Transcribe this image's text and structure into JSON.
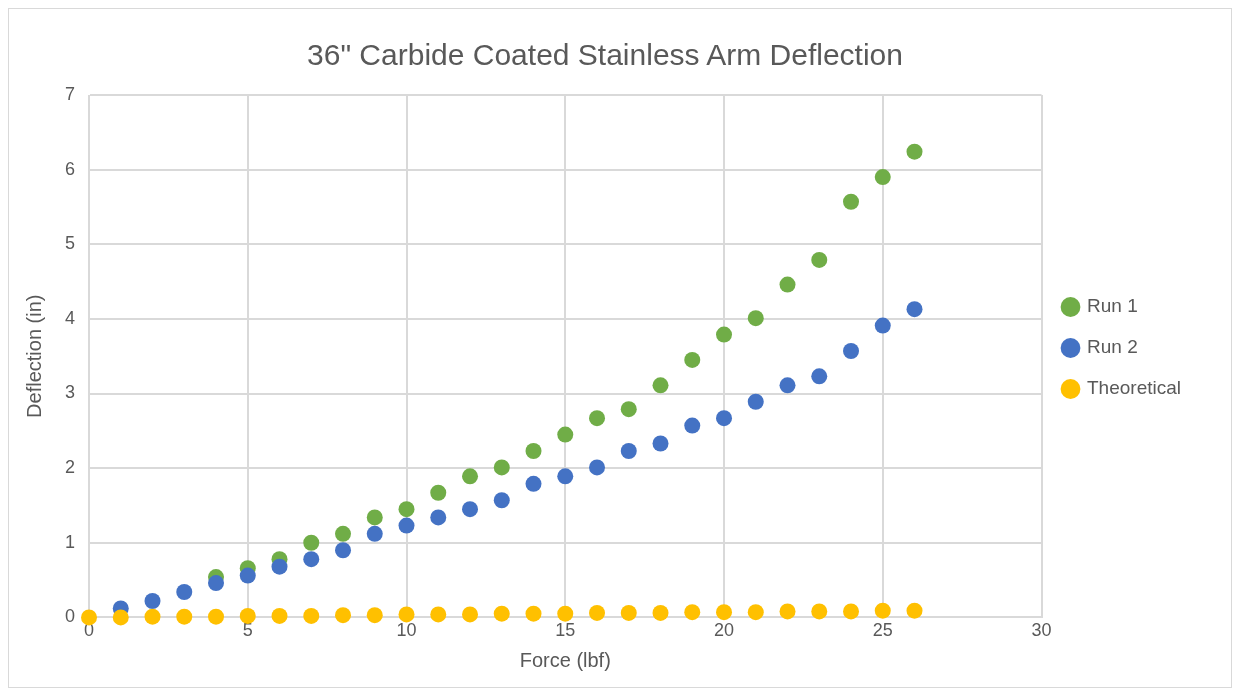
{
  "chart_data": {
    "type": "scatter",
    "title": "36\" Carbide Coated Stainless Arm Deflection",
    "xlabel": "Force (lbf)",
    "ylabel": "Deflection (in)",
    "x": [
      0,
      1,
      2,
      3,
      4,
      5,
      6,
      7,
      8,
      9,
      10,
      11,
      12,
      13,
      14,
      15,
      16,
      17,
      18,
      19,
      20,
      21,
      22,
      23,
      24,
      25,
      26
    ],
    "series": [
      {
        "name": "Run 1",
        "color": "#70ad47",
        "values": [
          null,
          null,
          null,
          null,
          0.54,
          0.66,
          0.78,
          1.0,
          1.12,
          1.34,
          1.45,
          1.67,
          1.89,
          2.01,
          2.23,
          2.45,
          2.67,
          2.79,
          3.11,
          3.45,
          3.79,
          4.01,
          4.46,
          4.79,
          5.57,
          5.9,
          6.24
        ]
      },
      {
        "name": "Run 2",
        "color": "#4472c4",
        "values": [
          null,
          0.12,
          0.22,
          0.34,
          0.46,
          0.56,
          0.68,
          0.78,
          0.9,
          1.12,
          1.23,
          1.34,
          1.45,
          1.57,
          1.79,
          1.89,
          2.01,
          2.23,
          2.33,
          2.57,
          2.67,
          2.89,
          3.11,
          3.23,
          3.57,
          3.91,
          4.13
        ]
      },
      {
        "name": "Theoretical",
        "color": "#ffc000",
        "values": [
          0,
          0,
          0.01,
          0.01,
          0.01,
          0.02,
          0.02,
          0.02,
          0.03,
          0.03,
          0.04,
          0.04,
          0.04,
          0.05,
          0.05,
          0.05,
          0.06,
          0.06,
          0.06,
          0.07,
          0.07,
          0.07,
          0.08,
          0.08,
          0.08,
          0.09,
          0.09
        ]
      }
    ],
    "xlim": [
      0,
      30
    ],
    "xticks": [
      0,
      5,
      10,
      15,
      20,
      25,
      30
    ],
    "ylim": [
      0,
      7
    ],
    "yticks": [
      0,
      1,
      2,
      3,
      4,
      5,
      6,
      7
    ],
    "grid": true,
    "legend": "right",
    "marker": "circle"
  }
}
